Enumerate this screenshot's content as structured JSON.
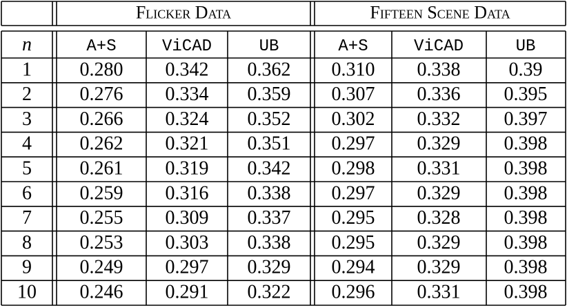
{
  "table": {
    "groups": [
      "Flicker Data",
      "Fifteen Scene Data"
    ],
    "header": [
      "n",
      "A+S",
      "ViCAD",
      "UB",
      "A+S",
      "ViCAD",
      "UB"
    ],
    "rows": [
      [
        "1",
        "0.280",
        "0.342",
        "0.362",
        "0.310",
        "0.338",
        "0.39"
      ],
      [
        "2",
        "0.276",
        "0.334",
        "0.359",
        "0.307",
        "0.336",
        "0.395"
      ],
      [
        "3",
        "0.266",
        "0.324",
        "0.352",
        "0.302",
        "0.332",
        "0.397"
      ],
      [
        "4",
        "0.262",
        "0.321",
        "0.351",
        "0.297",
        "0.329",
        "0.398"
      ],
      [
        "5",
        "0.261",
        "0.319",
        "0.342",
        "0.298",
        "0.331",
        "0.398"
      ],
      [
        "6",
        "0.259",
        "0.316",
        "0.338",
        "0.297",
        "0.329",
        "0.398"
      ],
      [
        "7",
        "0.255",
        "0.309",
        "0.337",
        "0.295",
        "0.328",
        "0.398"
      ],
      [
        "8",
        "0.253",
        "0.303",
        "0.338",
        "0.295",
        "0.329",
        "0.398"
      ],
      [
        "9",
        "0.249",
        "0.297",
        "0.329",
        "0.294",
        "0.329",
        "0.398"
      ],
      [
        "10",
        "0.246",
        "0.291",
        "0.322",
        "0.296",
        "0.331",
        "0.398"
      ]
    ]
  }
}
